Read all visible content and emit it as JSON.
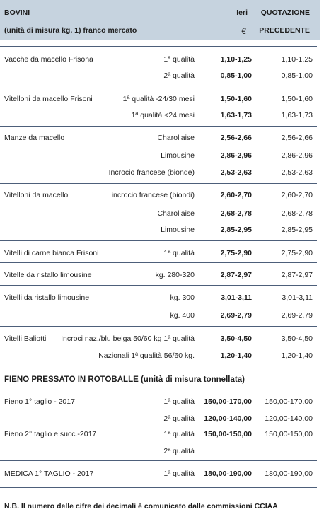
{
  "header": {
    "title": "BOVINI",
    "subtitle": "(unità di misura kg. 1) franco mercato",
    "col_ieri": "Ieri",
    "col_euro": "€",
    "col_prec_1": "QUOTAZIONE",
    "col_prec_2": "PRECEDENTE"
  },
  "bovini": [
    {
      "name": "Vacche da macello Frisona",
      "rows": [
        {
          "desc": "1ª qualità",
          "ieri": "1,10-1,25",
          "prec": "1,10-1,25"
        },
        {
          "desc": "2ª qualità",
          "ieri": "0,85-1,00",
          "prec": "0,85-1,00"
        }
      ]
    },
    {
      "name": "Vitelloni da macello Frisoni",
      "rows": [
        {
          "desc": "1ª qualità -24/30 mesi",
          "ieri": "1,50-1,60",
          "prec": "1,50-1,60"
        },
        {
          "desc": "1ª qualità <24 mesi",
          "ieri": "1,63-1,73",
          "prec": "1,63-1,73"
        }
      ]
    },
    {
      "name": "Manze da macello",
      "rows": [
        {
          "desc": "Charollaise",
          "ieri": "2,56-2,66",
          "prec": "2,56-2,66"
        },
        {
          "desc": "Limousine",
          "ieri": "2,86-2,96",
          "prec": "2,86-2,96"
        },
        {
          "desc": "Incrocio francese (bionde)",
          "ieri": "2,53-2,63",
          "prec": "2,53-2,63"
        }
      ]
    },
    {
      "name": "Vitelloni da macello",
      "rows": [
        {
          "desc": "incrocio francese (biondi)",
          "ieri": "2,60-2,70",
          "prec": "2,60-2,70"
        },
        {
          "desc": "Charollaise",
          "ieri": "2,68-2,78",
          "prec": "2,68-2,78"
        },
        {
          "desc": "Limousine",
          "ieri": "2,85-2,95",
          "prec": "2,85-2,95"
        }
      ]
    },
    {
      "name": "Vitelli di carne bianca Frisoni",
      "rows": [
        {
          "desc": "1ª qualità",
          "ieri": "2,75-2,90",
          "prec": "2,75-2,90"
        }
      ]
    },
    {
      "name": "Vitelle da ristallo limousine",
      "rows": [
        {
          "desc": "kg. 280-320",
          "ieri": "2,87-2,97",
          "prec": "2,87-2,97"
        }
      ]
    },
    {
      "name": "Vitelli da ristallo limousine",
      "rows": [
        {
          "desc": "kg. 300",
          "ieri": "3,01-3,11",
          "prec": "3,01-3,11"
        },
        {
          "desc": "kg. 400",
          "ieri": "2,69-2,79",
          "prec": "2,69-2,79"
        }
      ]
    },
    {
      "name": "Vitelli Baliotti",
      "rows": [
        {
          "desc": "Incroci naz./blu belga 50/60 kg 1ª qualità",
          "ieri": "3,50-4,50",
          "prec": "3,50-4,50"
        },
        {
          "desc": "Nazionali 1ª qualità 56/60 kg.",
          "ieri": "1,20-1,40",
          "prec": "1,20-1,40"
        }
      ]
    }
  ],
  "fieno": {
    "title": "FIENO PRESSATO IN ROTOBALLE (unità di misura tonnellata)",
    "groups": [
      {
        "name": "Fieno 1° taglio - 2017",
        "rows": [
          {
            "desc": "1ª qualità",
            "ieri": "150,00-170,00",
            "prec": "150,00-170,00"
          },
          {
            "desc": "2ª qualità",
            "ieri": "120,00-140,00",
            "prec": "120,00-140,00"
          }
        ]
      },
      {
        "name": "Fieno 2° taglio e succ.-2017",
        "rows": [
          {
            "desc": "1ª qualità",
            "ieri": "150,00-150,00",
            "prec": "150,00-150,00"
          },
          {
            "desc": "2ª qualità",
            "ieri": "",
            "prec": ""
          }
        ]
      },
      {
        "name": "MEDICA 1° TAGLIO - 2017",
        "rows": [
          {
            "desc": "1ª qualità",
            "ieri": "180,00-190,00",
            "prec": "180,00-190,00"
          }
        ]
      }
    ]
  },
  "footnote": "N.B. Il numero delle cifre dei decimali è comunicato dalle commissioni CCIAA"
}
